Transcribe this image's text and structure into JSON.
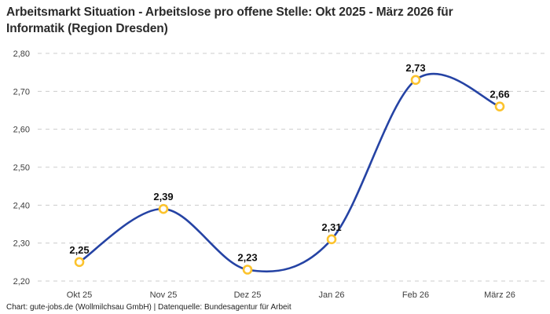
{
  "title": {
    "line1": "Arbeitsmarkt Situation - Arbeitslose pro offene Stelle: Okt 2025 - März 2026 für",
    "line2": "Informatik (Region Dresden)"
  },
  "footer": "Chart: gute-jobs.de (Wollmilchsau GmbH) | Datenquelle: Bundesagentur für Arbeit",
  "chart_data": {
    "type": "line",
    "title": "Arbeitsmarkt Situation - Arbeitslose pro offene Stelle: Okt 2025 - März 2026 für Informatik (Region Dresden)",
    "categories": [
      "Okt 25",
      "Nov 25",
      "Dez 25",
      "Jan 26",
      "Feb 26",
      "März 26"
    ],
    "values": [
      2.25,
      2.39,
      2.23,
      2.31,
      2.73,
      2.66
    ],
    "value_labels": [
      "2,25",
      "2,39",
      "2,23",
      "2,31",
      "2,73",
      "2,66"
    ],
    "ylim": [
      2.2,
      2.8
    ],
    "yticks": [
      2.2,
      2.3,
      2.4,
      2.5,
      2.6,
      2.7,
      2.8
    ],
    "ytick_labels": [
      "2,20",
      "2,30",
      "2,40",
      "2,50",
      "2,60",
      "2,70",
      "2,80"
    ],
    "xlabel": "",
    "ylabel": "",
    "grid": "horizontal-dashed",
    "legend": "none",
    "line_color": "#2543a4",
    "marker_color": "#fcc32d",
    "marker_fill": "#ffffff",
    "grid_color": "#cccccc",
    "decimal_separator": ","
  }
}
